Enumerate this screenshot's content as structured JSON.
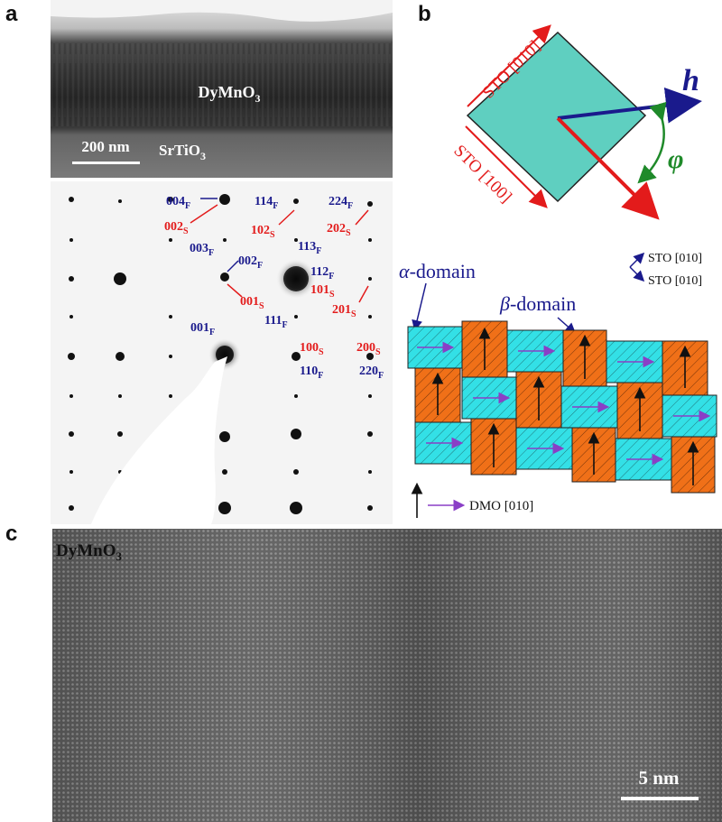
{
  "panel_labels": {
    "a": "a",
    "b": "b",
    "c": "c"
  },
  "tem_cross_section": {
    "film_label": "DyMnO",
    "film_sub": "3",
    "substrate_label": "SrTiO",
    "substrate_sub": "3",
    "scale_bar": "200 nm"
  },
  "diffraction_labels": [
    {
      "main": "004",
      "sub": "F",
      "color": "blue"
    },
    {
      "main": "114",
      "sub": "F",
      "color": "blue"
    },
    {
      "main": "224",
      "sub": "F",
      "color": "blue"
    },
    {
      "main": "002",
      "sub": "S",
      "color": "red"
    },
    {
      "main": "102",
      "sub": "S",
      "color": "red"
    },
    {
      "main": "202",
      "sub": "S",
      "color": "red"
    },
    {
      "main": "003",
      "sub": "F",
      "color": "blue"
    },
    {
      "main": "002",
      "sub": "F",
      "color": "blue"
    },
    {
      "main": "113",
      "sub": "F",
      "color": "blue"
    },
    {
      "main": "112",
      "sub": "F",
      "color": "blue"
    },
    {
      "main": "101",
      "sub": "S",
      "color": "red"
    },
    {
      "main": "001",
      "sub": "S",
      "color": "red"
    },
    {
      "main": "201",
      "sub": "S",
      "color": "red"
    },
    {
      "main": "001",
      "sub": "F",
      "color": "blue"
    },
    {
      "main": "111",
      "sub": "F",
      "color": "blue"
    },
    {
      "main": "100",
      "sub": "S",
      "color": "red"
    },
    {
      "main": "200",
      "sub": "S",
      "color": "red"
    },
    {
      "main": "110",
      "sub": "F",
      "color": "blue"
    },
    {
      "main": "220",
      "sub": "F",
      "color": "blue"
    }
  ],
  "orientation": {
    "sto_010": "STO [010]",
    "sto_100": "STO [100]",
    "h": "h",
    "phi": "φ"
  },
  "domains": {
    "alpha_greek": "α",
    "alpha_rest": "-domain",
    "beta_greek": "β",
    "beta_rest": "-domain",
    "axis1": "STO [010]",
    "axis2": "STO [010]",
    "dmo_legend": "DMO [010]"
  },
  "hrtem": {
    "film_label": "DyMnO",
    "film_sub": "3",
    "scale_bar": "5 nm"
  },
  "colors": {
    "blue_label": "#1a1a8c",
    "red_label": "#e31b1b",
    "alpha_cyan": "#33e0e6",
    "beta_orange": "#f07018",
    "square_fill": "#5fcfc0",
    "arrow_purple": "#8a3fc6",
    "phi_green": "#1f8a2a"
  }
}
